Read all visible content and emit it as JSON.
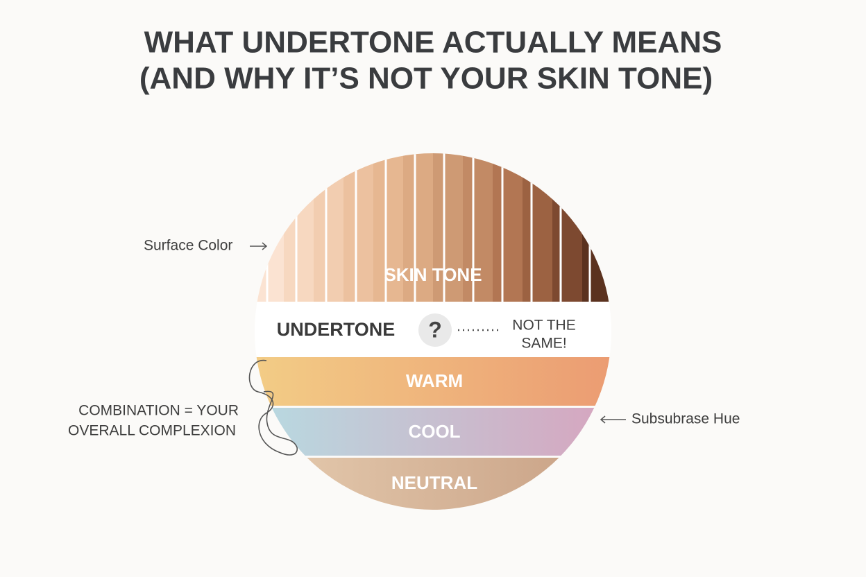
{
  "header": {
    "title_lines": [
      "WHAT UNDERTONE ACTUALLY MEANS",
      "(AND WHY IT’S NOT YOUR SKIN TONE)"
    ]
  },
  "diagram": {
    "skin_tone": {
      "label": "SKIN TONE",
      "annotation": "Surface Color"
    },
    "undertone": {
      "label": "UNDERTONE",
      "symbol": "?",
      "note_lines": [
        "NOT THE",
        "SAME!"
      ]
    },
    "bands": [
      {
        "label": "WARM"
      },
      {
        "label": "COOL"
      },
      {
        "label": "NEUTRAL"
      }
    ],
    "combination_lines": [
      "COMBINATION = YOUR",
      "OVERALL COMPLEXION"
    ],
    "band_annotation": "Subsubrase Hue"
  }
}
